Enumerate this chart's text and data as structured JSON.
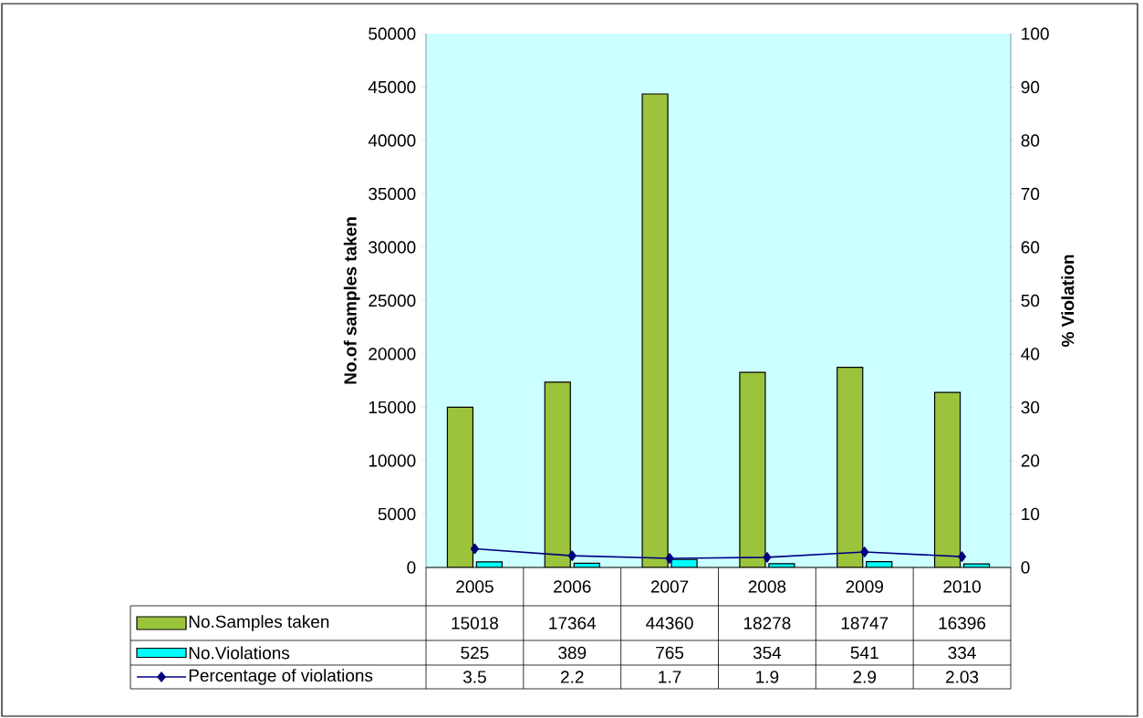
{
  "chart_data": {
    "type": "bar",
    "ylabel": "No.of samples taken",
    "y2label": "% Violation",
    "categories": [
      "2005",
      "2006",
      "2007",
      "2008",
      "2009",
      "2010"
    ],
    "series": [
      {
        "name": "No.Samples taken",
        "color": "#9bc43c",
        "values": [
          15018,
          17364,
          44360,
          18278,
          18747,
          16396
        ]
      },
      {
        "name": "No.Violations",
        "color": "#00ffff",
        "values": [
          525,
          389,
          765,
          354,
          541,
          334
        ]
      },
      {
        "name": "Percentage of violations",
        "type": "line",
        "axis": "y2",
        "color": "#000080",
        "marker": "diamond",
        "line_style": "solid",
        "values": [
          3.5,
          2.2,
          1.7,
          1.9,
          2.9,
          2.03
        ]
      }
    ],
    "ylim": [
      0,
      50000
    ],
    "yticks": [
      0,
      5000,
      10000,
      15000,
      20000,
      25000,
      30000,
      35000,
      40000,
      45000,
      50000
    ],
    "y2lim": [
      0,
      100
    ],
    "y2ticks": [
      0,
      10,
      20,
      30,
      40,
      50,
      60,
      70,
      80,
      90,
      100
    ],
    "data_labels": true,
    "legend": "bottom",
    "grid": false
  }
}
